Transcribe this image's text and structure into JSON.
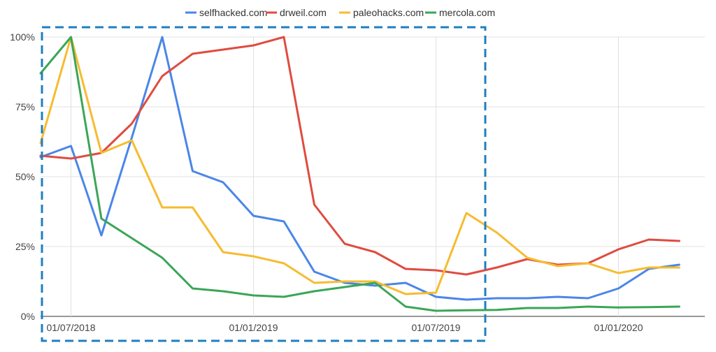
{
  "chart_data": {
    "type": "line",
    "title": "",
    "xlabel": "",
    "ylabel": "",
    "ylim": [
      0,
      100
    ],
    "y_ticks": [
      "0%",
      "25%",
      "50%",
      "75%",
      "100%"
    ],
    "x_ticks": [
      "01/07/2018",
      "01/01/2019",
      "01/07/2019",
      "01/01/2020"
    ],
    "x": [
      "2018-06",
      "2018-07",
      "2018-08",
      "2018-09",
      "2018-10",
      "2018-11",
      "2018-12",
      "2019-01",
      "2019-02",
      "2019-03",
      "2019-04",
      "2019-05",
      "2019-06",
      "2019-07",
      "2019-08",
      "2019-09",
      "2019-10",
      "2019-11",
      "2019-12",
      "2020-01",
      "2020-02",
      "2020-03"
    ],
    "legend_position": "top",
    "grid": "vertical and horizontal",
    "series": [
      {
        "name": "selfhacked.com",
        "color": "#4a86e8",
        "values": [
          57,
          61,
          29,
          64,
          100,
          52,
          48,
          36,
          34,
          16,
          12,
          11,
          12,
          7,
          6,
          6.5,
          6.5,
          7,
          6.5,
          10,
          17,
          18.5
        ]
      },
      {
        "name": "drweil.com",
        "color": "#e04b40",
        "values": [
          57.5,
          56.5,
          58.5,
          69,
          86,
          94,
          95.5,
          97,
          100,
          40,
          26,
          23,
          17,
          16.5,
          15,
          17.5,
          20.5,
          18.5,
          19,
          24,
          27.5,
          27
        ]
      },
      {
        "name": "paleohacks.com",
        "color": "#f6bc2f",
        "values": [
          62,
          100,
          58.5,
          63,
          39,
          39,
          23,
          21.5,
          19,
          12,
          12.5,
          12.5,
          8,
          8.5,
          37,
          30,
          21,
          18,
          19,
          15.5,
          17.5,
          17.5
        ]
      },
      {
        "name": "mercola.com",
        "color": "#3aa657",
        "values": [
          87,
          100,
          35,
          28,
          21,
          10,
          9,
          7.5,
          7,
          9,
          10.5,
          12,
          3.5,
          2,
          2.2,
          2.3,
          3,
          3,
          3.5,
          3.2,
          3.3,
          3.5
        ]
      }
    ],
    "annotation": "dashed blue rectangle highlighting 2018-06 to 2019-08"
  }
}
